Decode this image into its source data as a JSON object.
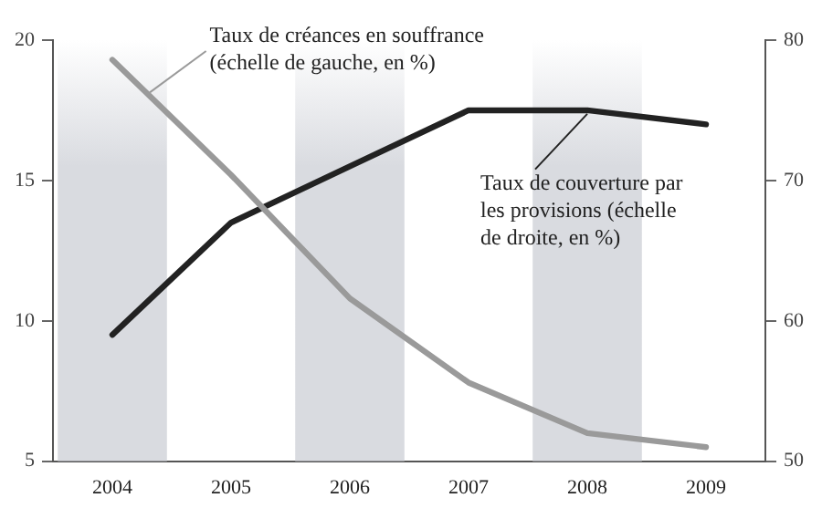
{
  "chart_data": {
    "type": "line",
    "categories": [
      "2004",
      "2005",
      "2006",
      "2007",
      "2008",
      "2009"
    ],
    "series": [
      {
        "name": "Taux de créances en souffrance (échelle de gauche, en %)",
        "color": "#9a9a9a",
        "values": [
          19.3,
          15.2,
          10.8,
          7.8,
          6.0,
          5.5
        ]
      },
      {
        "name": "Taux de couverture par les provisions (échelle de droite, en %)",
        "color": "#222222",
        "axis": "y2",
        "values": [
          59,
          67,
          71,
          75,
          75,
          74
        ]
      }
    ],
    "ylim": [
      5,
      20
    ],
    "yticks": [
      5,
      10,
      15,
      20
    ],
    "y2lim": [
      50,
      80
    ],
    "y2ticks": [
      50,
      60,
      70,
      80
    ],
    "bands": [
      {
        "axis": "x",
        "from": "2004",
        "to": "2004",
        "color": "#d9dbe0"
      },
      {
        "axis": "x",
        "from": "2006",
        "to": "2006",
        "color": "#d9dbe0"
      },
      {
        "axis": "x",
        "from": "2008",
        "to": "2008",
        "color": "#d9dbe0"
      }
    ],
    "grid": false,
    "legend": false,
    "marker": "none",
    "line_style": "solid"
  }
}
